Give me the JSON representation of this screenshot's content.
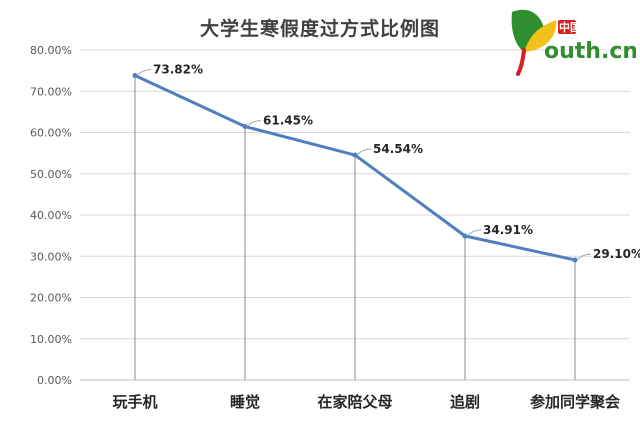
{
  "chart_data": {
    "type": "line",
    "title": "大学生寒假度过方式比例图",
    "categories": [
      "玩手机",
      "睡觉",
      "在家陪父母",
      "追剧",
      "参加同学聚会"
    ],
    "values": [
      73.82,
      61.45,
      54.54,
      34.91,
      29.1
    ],
    "data_labels": [
      "73.82%",
      "61.45%",
      "54.54%",
      "34.91%",
      "29.10%"
    ],
    "y_ticks": [
      "0.00%",
      "10.00%",
      "20.00%",
      "30.00%",
      "40.00%",
      "50.00%",
      "60.00%",
      "70.00%",
      "80.00%"
    ],
    "ylim": [
      0,
      80
    ],
    "grid": true,
    "line_color": "#4f7fbf",
    "xlabel": "",
    "ylabel": ""
  },
  "logo": {
    "brand_cn": "中国青年网",
    "brand_en": "outh.cn",
    "colors": {
      "red": "#d6201f",
      "green": "#2f8f2f",
      "yellow": "#f2c21b",
      "gray": "#5b5b5b"
    }
  }
}
